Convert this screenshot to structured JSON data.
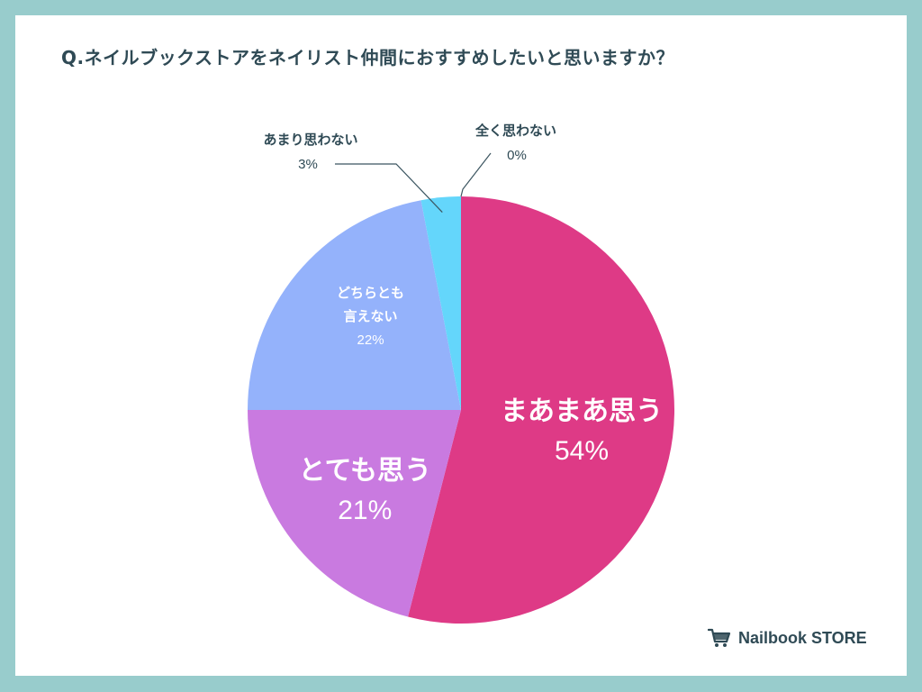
{
  "colors": {
    "frame": "#98cccc",
    "text": "#2f4a55",
    "leader": "#3b5560"
  },
  "brand": {
    "icon": "shopping-cart-icon",
    "name": "Nailbook STORE"
  },
  "chart_data": {
    "type": "pie",
    "title": "Q.ネイルブックストアをネイリスト仲間におすすめしたいと思いますか？",
    "slices": [
      {
        "label": "まあまあ思う",
        "value": 54,
        "display": "54%",
        "color": "#de3a86",
        "label_style": "inside-large"
      },
      {
        "label": "とても思う",
        "value": 21,
        "display": "21%",
        "color": "#c97ae0",
        "label_style": "inside-large"
      },
      {
        "label": "どちらとも言えない",
        "label_lines": [
          "どちらとも",
          "言えない"
        ],
        "value": 22,
        "display": "22%",
        "color": "#94b2fb",
        "label_style": "inside-small"
      },
      {
        "label": "あまり思わない",
        "value": 3,
        "display": "3%",
        "color": "#64d6fb",
        "label_style": "outside-left"
      },
      {
        "label": "全く思わない",
        "value": 0,
        "display": "0%",
        "color": "#9a9a9a",
        "label_style": "outside-right"
      }
    ]
  }
}
